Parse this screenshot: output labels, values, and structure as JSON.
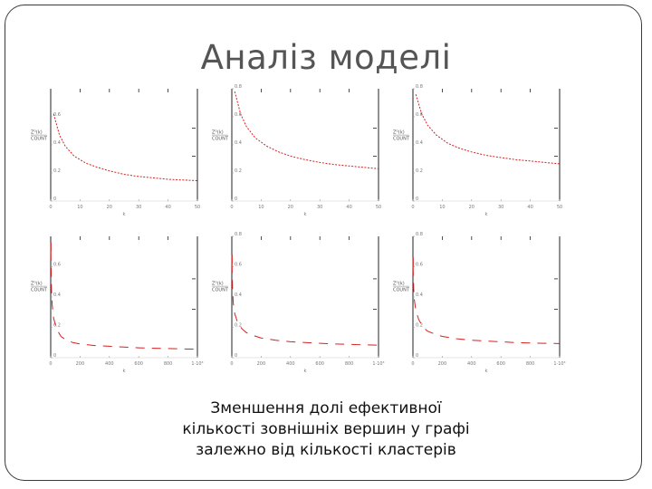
{
  "slide": {
    "title": "Аналіз моделі",
    "caption_lines": [
      "Зменшення долі ефективної",
      "кількості зовнішніх вершин у графі",
      "залежно від кількості кластерів"
    ]
  },
  "colors": {
    "curve": "#d62020",
    "axis": "#222222",
    "frame": "#3a3a3a"
  },
  "chart_data": [
    {
      "type": "line",
      "xlim": [
        0,
        50
      ],
      "ylim": [
        0,
        0.8
      ],
      "xticks": [
        "0",
        "10",
        "20",
        "30",
        "40",
        "50"
      ],
      "yticks": [
        "0",
        "0.2",
        "0.4",
        "0.6"
      ],
      "ylabel": [
        "Zᴳ(k)",
        "COUNT"
      ],
      "xlabel": "k",
      "series": [
        {
          "values": [
            [
              1,
              0.62
            ],
            [
              3,
              0.47
            ],
            [
              5,
              0.39
            ],
            [
              8,
              0.32
            ],
            [
              12,
              0.27
            ],
            [
              16,
              0.24
            ],
            [
              20,
              0.215
            ],
            [
              25,
              0.19
            ],
            [
              30,
              0.175
            ],
            [
              35,
              0.165
            ],
            [
              40,
              0.155
            ],
            [
              45,
              0.15
            ],
            [
              50,
              0.145
            ]
          ]
        }
      ]
    },
    {
      "type": "line",
      "xlim": [
        0,
        50
      ],
      "ylim": [
        0,
        0.8
      ],
      "xticks": [
        "0",
        "10",
        "20",
        "30",
        "40",
        "50"
      ],
      "yticks": [
        "0",
        "0.2",
        "0.4",
        "0.6",
        "0.8"
      ],
      "ylabel": [
        "Zᴳ(k)",
        "COUNT"
      ],
      "xlabel": "k",
      "series": [
        {
          "values": [
            [
              1,
              0.78
            ],
            [
              3,
              0.62
            ],
            [
              5,
              0.53
            ],
            [
              8,
              0.45
            ],
            [
              12,
              0.39
            ],
            [
              16,
              0.35
            ],
            [
              20,
              0.32
            ],
            [
              25,
              0.295
            ],
            [
              30,
              0.275
            ],
            [
              35,
              0.26
            ],
            [
              40,
              0.25
            ],
            [
              45,
              0.24
            ],
            [
              50,
              0.23
            ]
          ]
        }
      ]
    },
    {
      "type": "line",
      "xlim": [
        0,
        50
      ],
      "ylim": [
        0,
        0.8
      ],
      "xticks": [
        "0",
        "10",
        "20",
        "30",
        "40",
        "50"
      ],
      "yticks": [
        "0",
        "0.2",
        "0.4",
        "0.6",
        "0.8"
      ],
      "ylabel": [
        "Zᴳ(k)",
        "COUNT"
      ],
      "xlabel": "k",
      "series": [
        {
          "values": [
            [
              1,
              0.76
            ],
            [
              3,
              0.62
            ],
            [
              5,
              0.54
            ],
            [
              8,
              0.47
            ],
            [
              12,
              0.41
            ],
            [
              16,
              0.375
            ],
            [
              20,
              0.35
            ],
            [
              25,
              0.325
            ],
            [
              30,
              0.31
            ],
            [
              35,
              0.295
            ],
            [
              40,
              0.285
            ],
            [
              45,
              0.275
            ],
            [
              50,
              0.265
            ]
          ]
        }
      ]
    },
    {
      "type": "line",
      "xlim": [
        0,
        1000
      ],
      "ylim": [
        0,
        0.8
      ],
      "xticks": [
        "0",
        "200",
        "400",
        "600",
        "800",
        "1·10³"
      ],
      "yticks": [
        "0",
        "0.2",
        "0.4",
        "0.6"
      ],
      "ylabel": [
        "Zᴳ(k)",
        "COUNT"
      ],
      "xlabel": "k",
      "series": [
        {
          "values": [
            [
              1,
              0.7
            ],
            [
              5,
              0.45
            ],
            [
              10,
              0.35
            ],
            [
              20,
              0.26
            ],
            [
              40,
              0.19
            ],
            [
              70,
              0.14
            ],
            [
              100,
              0.12
            ],
            [
              150,
              0.1
            ],
            [
              200,
              0.09
            ],
            [
              300,
              0.08
            ],
            [
              400,
              0.075
            ],
            [
              500,
              0.07
            ],
            [
              600,
              0.065
            ],
            [
              700,
              0.062
            ],
            [
              800,
              0.06
            ],
            [
              900,
              0.058
            ],
            [
              1000,
              0.056
            ]
          ]
        }
      ]
    },
    {
      "type": "line",
      "xlim": [
        0,
        1000
      ],
      "ylim": [
        0,
        0.8
      ],
      "xticks": [
        "0",
        "200",
        "400",
        "600",
        "800",
        "1·10³"
      ],
      "yticks": [
        "0",
        "0.2",
        "0.4",
        "0.6",
        "0.8"
      ],
      "ylabel": [
        "Zᴳ(k)",
        "COUNT"
      ],
      "xlabel": "k",
      "series": [
        {
          "values": [
            [
              1,
              0.62
            ],
            [
              5,
              0.44
            ],
            [
              10,
              0.36
            ],
            [
              20,
              0.29
            ],
            [
              40,
              0.23
            ],
            [
              70,
              0.19
            ],
            [
              100,
              0.165
            ],
            [
              150,
              0.145
            ],
            [
              200,
              0.13
            ],
            [
              300,
              0.115
            ],
            [
              400,
              0.105
            ],
            [
              500,
              0.1
            ],
            [
              600,
              0.095
            ],
            [
              700,
              0.09
            ],
            [
              800,
              0.088
            ],
            [
              900,
              0.085
            ],
            [
              1000,
              0.083
            ]
          ]
        }
      ]
    },
    {
      "type": "line",
      "xlim": [
        0,
        1000
      ],
      "ylim": [
        0,
        0.8
      ],
      "xticks": [
        "0",
        "200",
        "400",
        "600",
        "800",
        "1·10³"
      ],
      "yticks": [
        "0",
        "0.2",
        "0.4",
        "0.6",
        "0.8"
      ],
      "ylabel": [
        "Zᴳ(k)",
        "COUNT"
      ],
      "xlabel": "k",
      "series": [
        {
          "values": [
            [
              1,
              0.6
            ],
            [
              5,
              0.46
            ],
            [
              10,
              0.38
            ],
            [
              20,
              0.31
            ],
            [
              40,
              0.25
            ],
            [
              70,
              0.2
            ],
            [
              100,
              0.175
            ],
            [
              150,
              0.155
            ],
            [
              200,
              0.14
            ],
            [
              300,
              0.125
            ],
            [
              400,
              0.115
            ],
            [
              500,
              0.11
            ],
            [
              600,
              0.105
            ],
            [
              700,
              0.1
            ],
            [
              800,
              0.097
            ],
            [
              900,
              0.095
            ],
            [
              1000,
              0.093
            ]
          ]
        }
      ]
    }
  ]
}
